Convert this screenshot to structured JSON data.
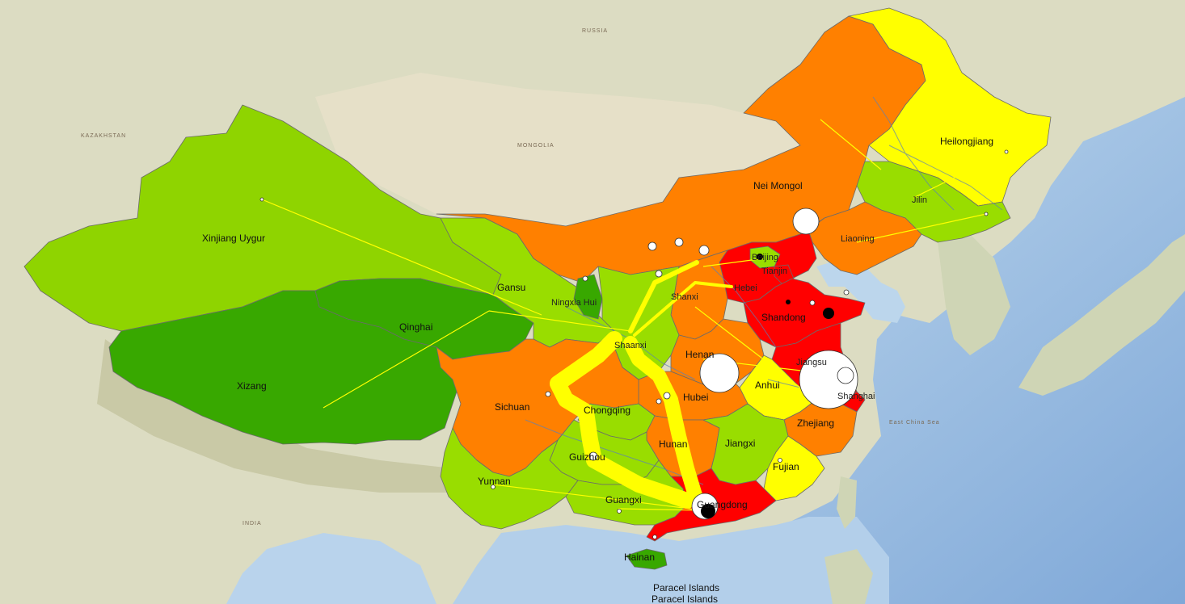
{
  "colors": {
    "ocean": "#b9d3ec",
    "deep_ocean": "#8fb5e0",
    "land": "#dfe0c8",
    "desert": "#e8e2cc",
    "mountain": "#c8cca8",
    "class_red": "#ff0000",
    "class_orange": "#ff8000",
    "class_yellow": "#ffff00",
    "class_lightgreen": "#99dd00",
    "class_green": "#89d400",
    "class_darkgreen": "#38a800",
    "flow": "#ffff00",
    "node_fill": "#ffffff",
    "node_dark": "#000000"
  },
  "provinces": [
    {
      "id": "xinjiang",
      "label": "Xinjiang Uygur",
      "class": "green"
    },
    {
      "id": "xizang",
      "label": "Xizang",
      "class": "darkgreen"
    },
    {
      "id": "qinghai",
      "label": "Qinghai",
      "class": "darkgreen"
    },
    {
      "id": "gansu",
      "label": "Gansu",
      "class": "lightgreen"
    },
    {
      "id": "neimongol",
      "label": "Nei Mongol",
      "class": "orange"
    },
    {
      "id": "heilongjiang",
      "label": "Heilongjiang",
      "class": "yellow"
    },
    {
      "id": "jilin",
      "label": "Jilin",
      "class": "lightgreen"
    },
    {
      "id": "liaoning",
      "label": "Liaoning",
      "class": "orange"
    },
    {
      "id": "beijing",
      "label": "Beijing",
      "class": "lightgreen"
    },
    {
      "id": "tianjin",
      "label": "Tianjin",
      "class": "red"
    },
    {
      "id": "hebei",
      "label": "Hebei",
      "class": "red"
    },
    {
      "id": "shandong",
      "label": "Shandong",
      "class": "red"
    },
    {
      "id": "shanxi",
      "label": "Shanxi",
      "class": "orange"
    },
    {
      "id": "ningxia",
      "label": "Ningxia Hui",
      "class": "darkgreen"
    },
    {
      "id": "shaanxi",
      "label": "Shaanxi",
      "class": "lightgreen"
    },
    {
      "id": "henan",
      "label": "Henan",
      "class": "orange"
    },
    {
      "id": "jiangsu",
      "label": "Jiangsu",
      "class": "red"
    },
    {
      "id": "anhui",
      "label": "Anhui",
      "class": "yellow"
    },
    {
      "id": "shanghai",
      "label": "Shanghai",
      "class": "red"
    },
    {
      "id": "hubei",
      "label": "Hubei",
      "class": "orange"
    },
    {
      "id": "sichuan",
      "label": "Sichuan",
      "class": "orange"
    },
    {
      "id": "chongqing",
      "label": "Chongqing",
      "class": "lightgreen"
    },
    {
      "id": "zhejiang",
      "label": "Zhejiang",
      "class": "orange"
    },
    {
      "id": "hunan",
      "label": "Hunan",
      "class": "orange"
    },
    {
      "id": "jiangxi",
      "label": "Jiangxi",
      "class": "lightgreen"
    },
    {
      "id": "fujian",
      "label": "Fujian",
      "class": "yellow"
    },
    {
      "id": "guizhou",
      "label": "Guizhou",
      "class": "lightgreen"
    },
    {
      "id": "yunnan",
      "label": "Yunnan",
      "class": "lightgreen"
    },
    {
      "id": "guangxi",
      "label": "Guangxi",
      "class": "lightgreen"
    },
    {
      "id": "guangdong",
      "label": "Guangdong",
      "class": "red"
    },
    {
      "id": "hainan",
      "label": "Hainan",
      "class": "darkgreen"
    }
  ],
  "other_labels": {
    "paracel_1": "Paracel Islands",
    "paracel_2": "Paracel Islands",
    "east_china_sea": "East China Sea",
    "mongolia": "MONGOLIA",
    "kazakhstan": "KAZAKHSTAN",
    "india": "INDIA",
    "russia": "RUSSIA"
  }
}
